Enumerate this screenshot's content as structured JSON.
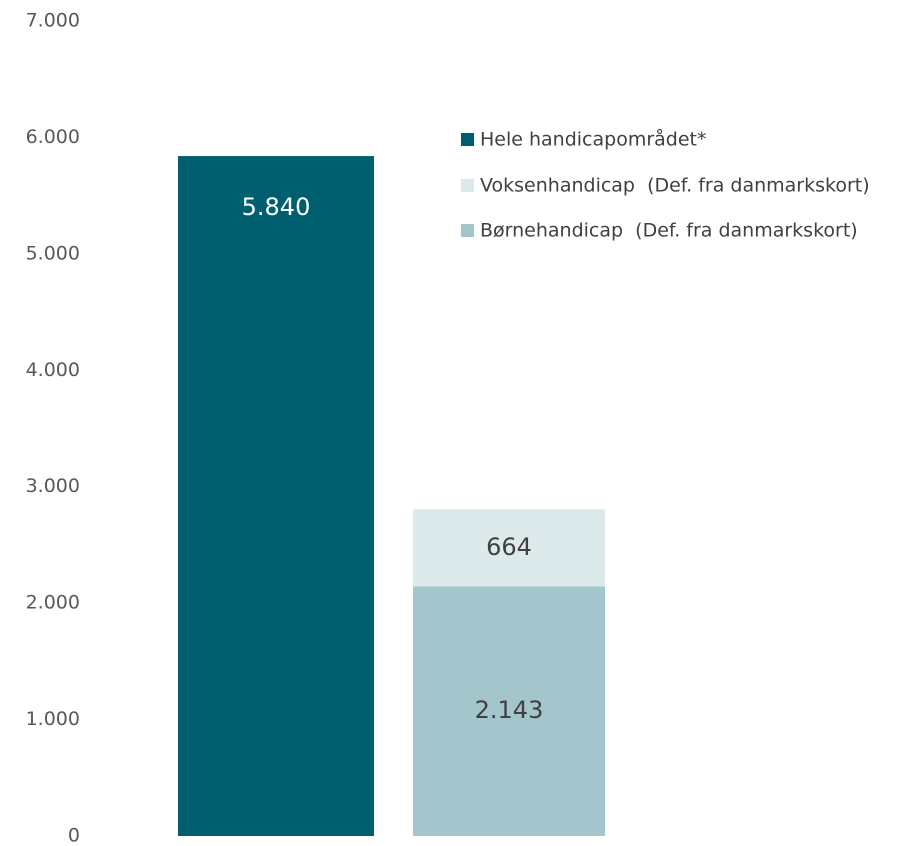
{
  "chart_data": {
    "type": "bar",
    "stacked": true,
    "ylim": [
      0,
      7000
    ],
    "yticks": [
      0,
      1000,
      2000,
      3000,
      4000,
      5000,
      6000,
      7000
    ],
    "ytick_labels": [
      "0",
      "1.000",
      "2.000",
      "3.000",
      "4.000",
      "5.000",
      "6.000",
      "7.000"
    ],
    "grid": false,
    "legend_position": "right",
    "bars": [
      {
        "segments": [
          {
            "series": "Hele handicapområdet*",
            "value": 5840,
            "label": "5.840"
          }
        ]
      },
      {
        "segments": [
          {
            "series": "Børnehandicap  (Def. fra danmarkskort)",
            "value": 2143,
            "label": "2.143"
          },
          {
            "series": "Voksenhandicap  (Def. fra danmarkskort)",
            "value": 664,
            "label": "664"
          }
        ]
      }
    ],
    "legend": [
      {
        "name": "Hele handicapområdet*",
        "color": "#005F6E"
      },
      {
        "name": "Voksenhandicap  (Def. fra danmarkskort)",
        "color": "#DDEAEC"
      },
      {
        "name": "Børnehandicap  (Def. fra danmarkskort)",
        "color": "#A3C6CC"
      }
    ],
    "series_colors": {
      "Hele handicapområdet*": "#005F6E",
      "Voksenhandicap  (Def. fra danmarkskort)": "#DDEAEC",
      "Børnehandicap  (Def. fra danmarkskort)": "#A3C6CC"
    },
    "label_colors": {
      "Hele handicapområdet*": "#FFFFFF",
      "Voksenhandicap  (Def. fra danmarkskort)": "#404040",
      "Børnehandicap  (Def. fra danmarkskort)": "#404040"
    }
  }
}
